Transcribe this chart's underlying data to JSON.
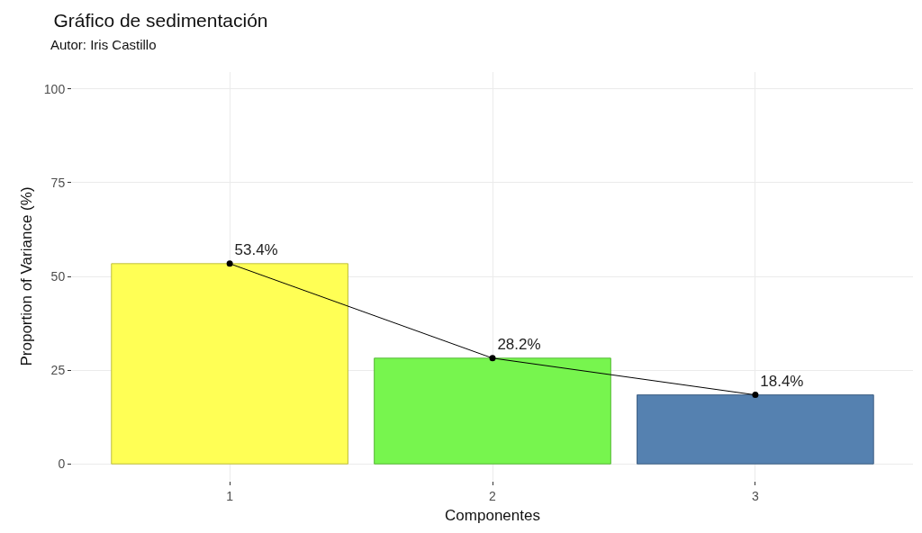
{
  "chart_data": {
    "type": "bar",
    "title": "Gráfico de sedimentación",
    "subtitle": "Autor: Iris Castillo",
    "xlabel": "Componentes",
    "ylabel": "Proportion of Variance (%)",
    "categories": [
      "1",
      "2",
      "3"
    ],
    "series": [
      {
        "colors": [
          "#ffff55",
          "#77f54e",
          "#5581b0"
        ],
        "values": [
          53.4,
          28.2,
          18.4
        ]
      },
      {
        "type": "line",
        "color": "#000000",
        "values": [
          53.4,
          28.2,
          18.4
        ],
        "value_labels": [
          "53.4%",
          "28.2%",
          "18.4%"
        ]
      }
    ],
    "ylim": [
      -4.5,
      104.5
    ],
    "yticks": [
      0,
      25,
      50,
      75,
      100
    ],
    "grid": true,
    "marker": "circle",
    "line_style": "solid"
  }
}
